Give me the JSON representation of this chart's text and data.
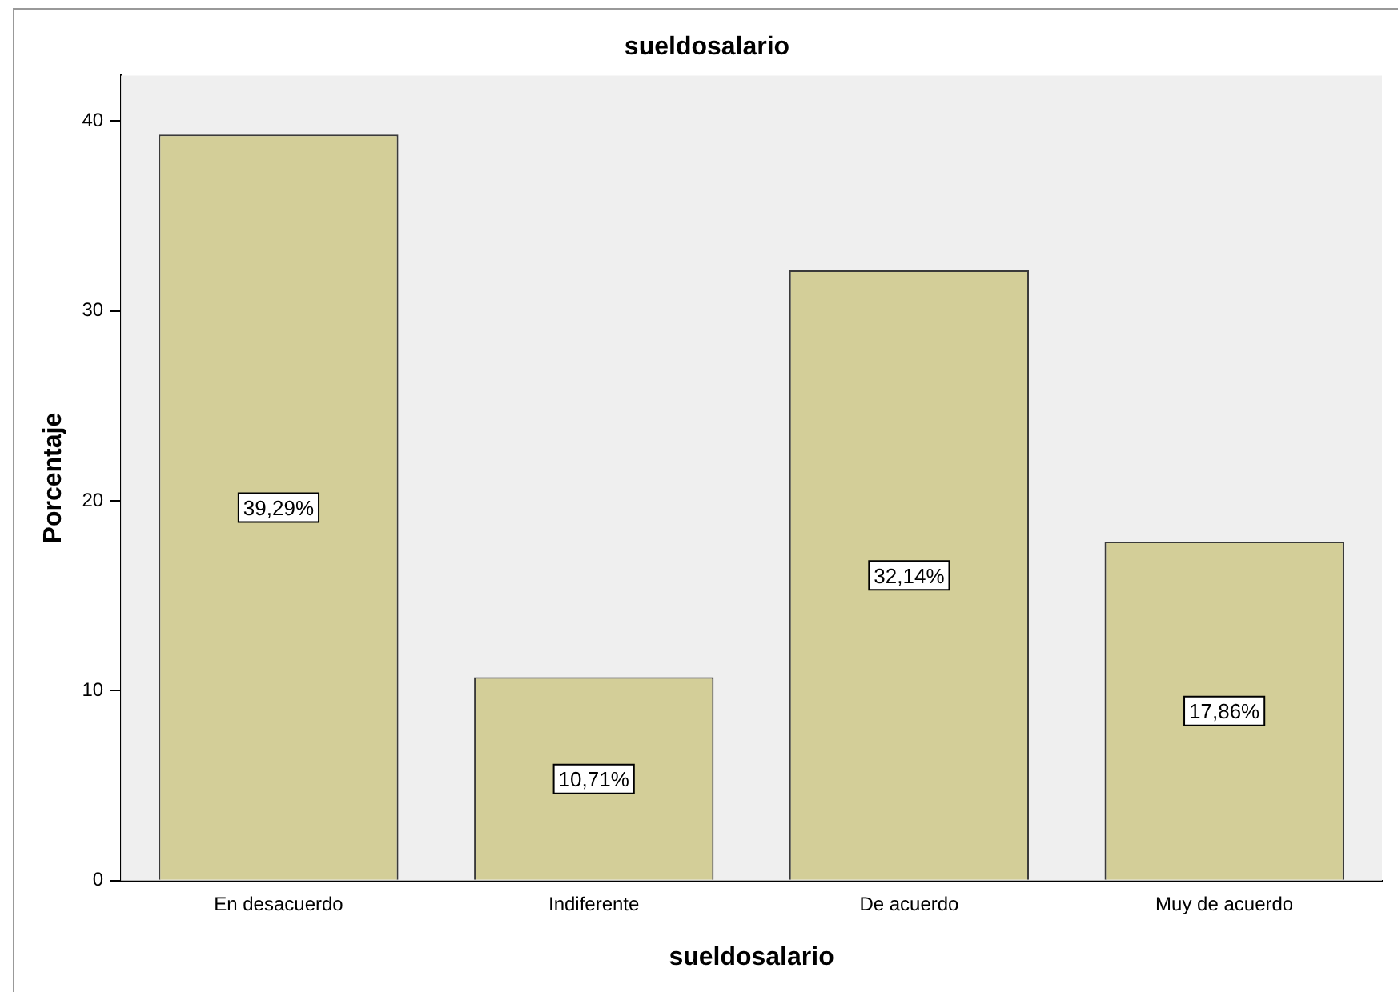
{
  "chart_data": {
    "type": "bar",
    "title": "sueldosalario",
    "xlabel": "sueldosalario",
    "ylabel": "Porcentaje",
    "categories": [
      "En desacuerdo",
      "Indiferente",
      "De acuerdo",
      "Muy de acuerdo"
    ],
    "values": [
      39.29,
      10.71,
      32.14,
      17.86
    ],
    "value_labels": [
      "39,29%",
      "10,71%",
      "32,14%",
      "17,86%"
    ],
    "color": "#d3ce98",
    "ylim": [
      0,
      42.4
    ],
    "yticks": [
      0,
      10,
      20,
      30,
      40
    ],
    "grid": false,
    "legend": false
  }
}
